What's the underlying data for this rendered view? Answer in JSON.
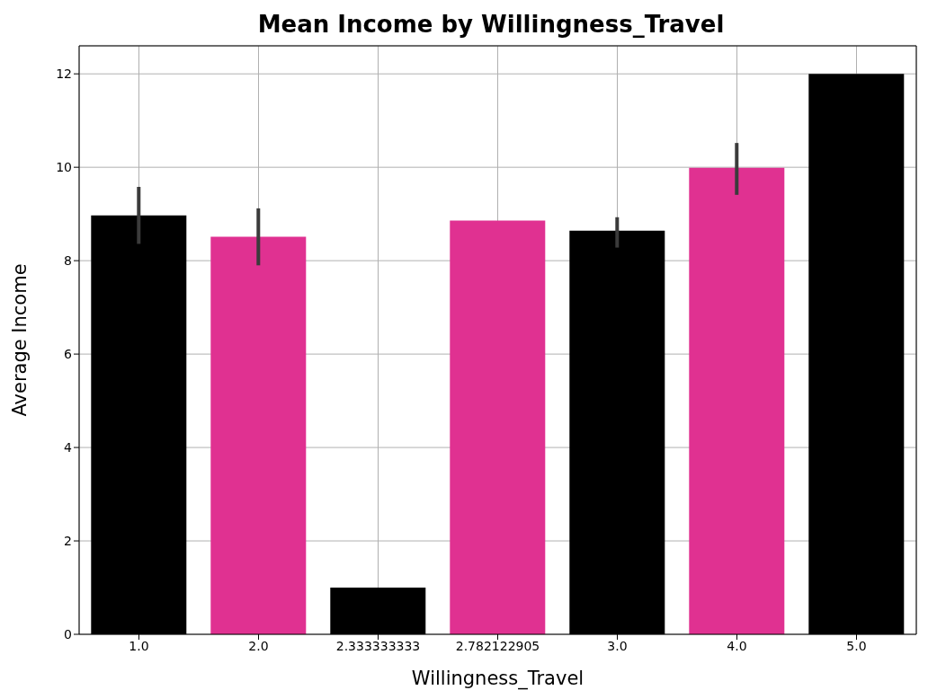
{
  "chart_data": {
    "type": "bar",
    "title": "Mean Income by Willingness_Travel",
    "xlabel": "Willingness_Travel",
    "ylabel": "Average Income",
    "categories": [
      "1.0",
      "2.0",
      "2.333333333",
      "2.782122905",
      "3.0",
      "4.0",
      "5.0"
    ],
    "values": [
      8.97,
      8.51,
      1.0,
      8.86,
      8.64,
      9.99,
      12.0
    ],
    "colors": [
      "#000000",
      "#e03191",
      "#000000",
      "#e03191",
      "#000000",
      "#e03191",
      "#000000"
    ],
    "errors": [
      [
        8.36,
        9.58
      ],
      [
        7.9,
        9.12
      ],
      null,
      null,
      [
        8.28,
        8.93
      ],
      [
        9.41,
        10.52
      ],
      null
    ],
    "ylim": [
      0,
      12.6
    ],
    "yticks": [
      0,
      2,
      4,
      6,
      8,
      10,
      12
    ],
    "grid": true
  }
}
